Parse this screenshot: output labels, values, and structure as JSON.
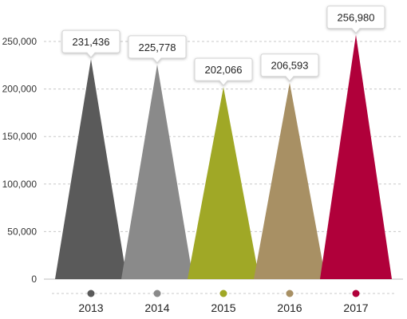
{
  "chart_data": {
    "type": "bar",
    "mark_shape": "triangle",
    "categories": [
      "2013",
      "2014",
      "2015",
      "2016",
      "2017"
    ],
    "values": [
      231436,
      225778,
      202066,
      206593,
      256980
    ],
    "value_labels": [
      "231,436",
      "225,778",
      "202,066",
      "206,593",
      "256,980"
    ],
    "colors": [
      "#5a5a5a",
      "#8a8a8a",
      "#a0a826",
      "#a89064",
      "#b0003a"
    ],
    "ylim": [
      0,
      250000
    ],
    "yticks": [
      0,
      50000,
      100000,
      150000,
      200000,
      250000
    ],
    "ytick_labels": [
      "0",
      "50,000",
      "100,000",
      "150,000",
      "200,000",
      "250,000"
    ],
    "grid": true,
    "title": "",
    "xlabel": "",
    "ylabel": ""
  }
}
